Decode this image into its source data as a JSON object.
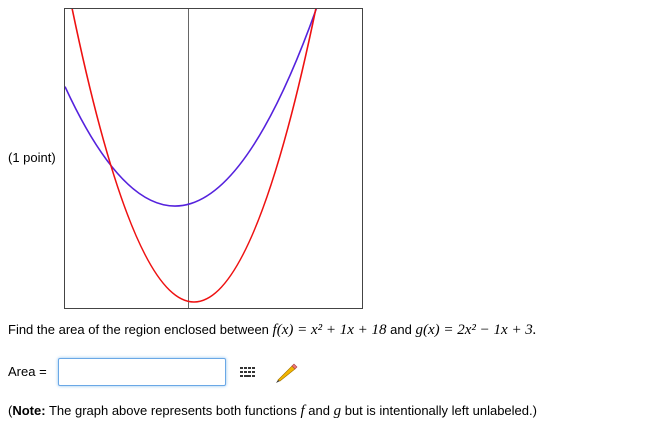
{
  "points": "(1 point)",
  "question": {
    "prefix": "Find the area of the region enclosed between",
    "f": "f(x) = x² + 1x + 18",
    "middle": "and",
    "g": "g(x) = 2x² − 1x + 3."
  },
  "answer": {
    "label": "Area ="
  },
  "note": {
    "open": "(",
    "bold": "Note:",
    "text1": "The graph above represents both functions",
    "f": "f",
    "and": "and",
    "g": "g",
    "text2": "but is intentionally left unlabeled.)"
  }
}
